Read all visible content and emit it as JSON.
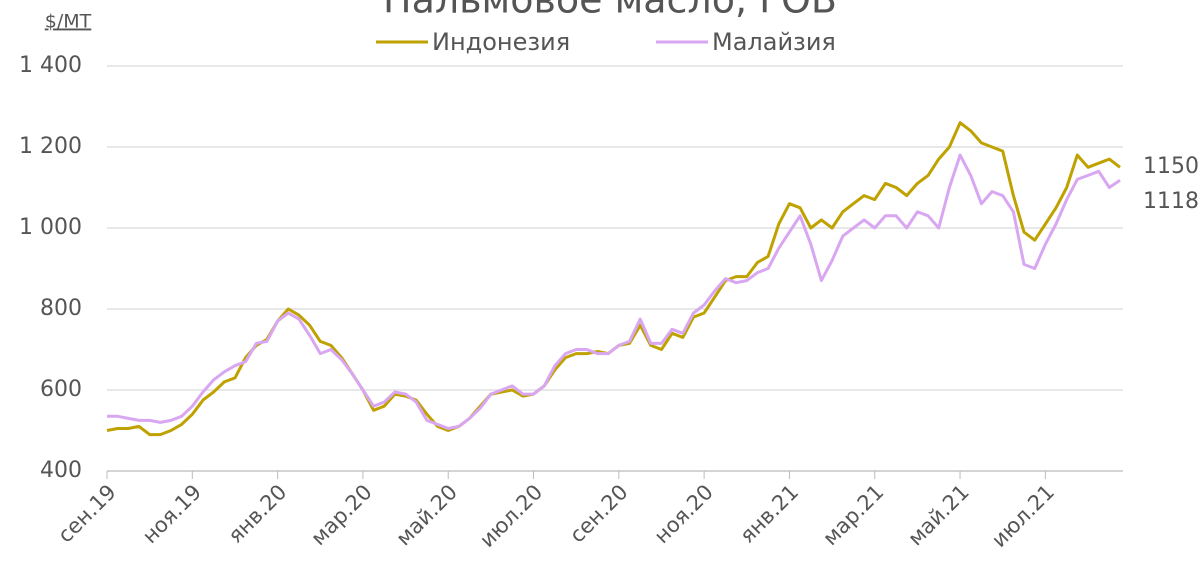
{
  "chart_data": {
    "type": "line",
    "title": "Пальмовое масло, FOB",
    "y_label": "$/МТ",
    "categories": [
      "сен.19",
      null,
      null,
      null,
      null,
      null,
      null,
      null,
      "ноя.19",
      null,
      null,
      null,
      null,
      null,
      null,
      null,
      "янв.20",
      null,
      null,
      null,
      null,
      null,
      null,
      null,
      "мар.20",
      null,
      null,
      null,
      null,
      null,
      null,
      null,
      "май.20",
      null,
      null,
      null,
      null,
      null,
      null,
      null,
      "июл.20",
      null,
      null,
      null,
      null,
      null,
      null,
      null,
      "сен.20",
      null,
      null,
      null,
      null,
      null,
      null,
      null,
      "ноя.20",
      null,
      null,
      null,
      null,
      null,
      null,
      null,
      "янв.21",
      null,
      null,
      null,
      null,
      null,
      null,
      null,
      "мар.21",
      null,
      null,
      null,
      null,
      null,
      null,
      null,
      "май.21",
      null,
      null,
      null,
      null,
      null,
      null,
      null,
      "июл.21",
      null,
      null,
      null,
      null,
      null,
      null,
      null
    ],
    "series": [
      {
        "name": "Индонезия",
        "color": "#bfa100",
        "values": [
          500,
          505,
          505,
          510,
          490,
          490,
          500,
          515,
          540,
          575,
          595,
          620,
          630,
          680,
          710,
          725,
          770,
          800,
          785,
          760,
          720,
          710,
          680,
          640,
          600,
          550,
          560,
          590,
          585,
          575,
          540,
          510,
          500,
          510,
          530,
          560,
          590,
          595,
          600,
          585,
          590,
          610,
          650,
          680,
          690,
          690,
          695,
          690,
          710,
          715,
          760,
          710,
          700,
          740,
          730,
          780,
          790,
          830,
          870,
          880,
          880,
          915,
          930,
          1010,
          1060,
          1050,
          1000,
          1020,
          1000,
          1040,
          1060,
          1080,
          1070,
          1110,
          1100,
          1080,
          1110,
          1130,
          1170,
          1200,
          1260,
          1240,
          1210,
          1200,
          1190,
          1080,
          990,
          970,
          1010,
          1050,
          1100,
          1180,
          1150,
          1160,
          1170,
          1150
        ]
      },
      {
        "name": "Малайзия",
        "color": "#d9a6f2",
        "values": [
          535,
          535,
          530,
          525,
          525,
          520,
          525,
          535,
          560,
          595,
          625,
          645,
          660,
          670,
          715,
          720,
          770,
          790,
          775,
          735,
          690,
          700,
          675,
          640,
          600,
          560,
          570,
          595,
          590,
          570,
          525,
          515,
          505,
          510,
          530,
          555,
          590,
          600,
          610,
          590,
          590,
          610,
          660,
          690,
          700,
          700,
          690,
          690,
          710,
          720,
          775,
          715,
          715,
          750,
          740,
          790,
          810,
          845,
          875,
          865,
          870,
          890,
          900,
          950,
          990,
          1030,
          960,
          870,
          920,
          980,
          1000,
          1020,
          1000,
          1030,
          1030,
          1000,
          1040,
          1030,
          1000,
          1100,
          1180,
          1130,
          1060,
          1090,
          1080,
          1040,
          910,
          900,
          960,
          1010,
          1070,
          1120,
          1130,
          1140,
          1100,
          1118
        ]
      }
    ],
    "ylim": [
      400,
      1400
    ],
    "yticks": [
      400,
      600,
      800,
      {
        "value": 1000,
        "label": "1 000"
      },
      {
        "value": 1200,
        "label": "1 200"
      },
      {
        "value": 1400,
        "label": "1 400"
      }
    ],
    "grid": true,
    "legend": "top"
  }
}
